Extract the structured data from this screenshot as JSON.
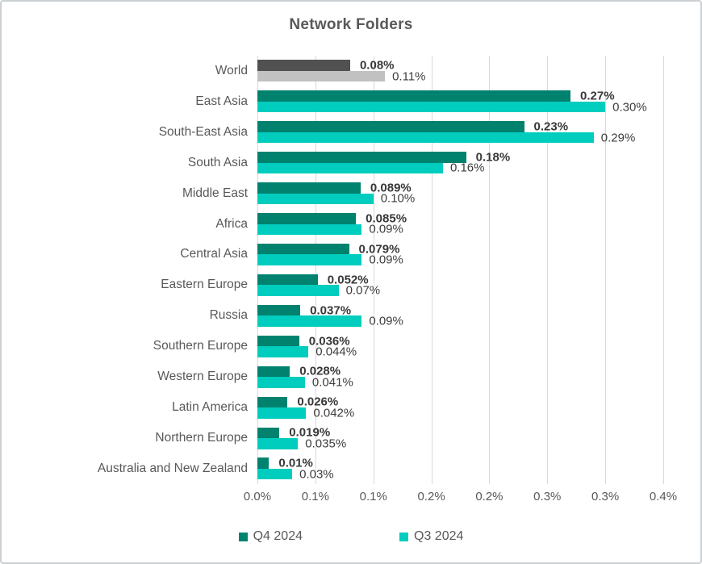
{
  "frame": {
    "background": "#ffffff",
    "border_color": "#cbd0d3"
  },
  "colors": {
    "q4_bar": "#00826F",
    "q3_bar": "#00CDBE",
    "world_q4_bar": "#515151",
    "world_q3_bar": "#C1C1C1",
    "gridline": "#d9d9d9",
    "text_gray": "#595959",
    "value_label": "#3d3d3d"
  },
  "chart_data": {
    "type": "bar",
    "orientation": "horizontal",
    "title": "Network Folders",
    "categories": [
      "World",
      "East Asia",
      "South-East Asia",
      "South Asia",
      "Middle East",
      "Africa",
      "Central Asia",
      "Eastern Europe",
      "Russia",
      "Southern Europe",
      "Western Europe",
      "Latin America",
      "Northern Europe",
      "Australia and New Zealand"
    ],
    "series": [
      {
        "name": "Q4 2024",
        "color": "#00826F",
        "world_bar_color": "#515151",
        "values": [
          0.08,
          0.27,
          0.23,
          0.18,
          0.089,
          0.085,
          0.079,
          0.052,
          0.037,
          0.036,
          0.028,
          0.026,
          0.019,
          0.01
        ],
        "labels": [
          "0.08%",
          "0.27%",
          "0.23%",
          "0.18%",
          "0.089%",
          "0.085%",
          "0.079%",
          "0.052%",
          "0.037%",
          "0.036%",
          "0.028%",
          "0.026%",
          "0.019%",
          "0.01%"
        ]
      },
      {
        "name": "Q3 2024",
        "color": "#00CDBE",
        "world_bar_color": "#C1C1C1",
        "values": [
          0.11,
          0.3,
          0.29,
          0.16,
          0.1,
          0.09,
          0.09,
          0.07,
          0.09,
          0.044,
          0.041,
          0.042,
          0.035,
          0.03
        ],
        "labels": [
          "0.11%",
          "0.30%",
          "0.29%",
          "0.16%",
          "0.10%",
          "0.09%",
          "0.09%",
          "0.07%",
          "0.09%",
          "0.044%",
          "0.041%",
          "0.042%",
          "0.035%",
          "0.03%"
        ]
      }
    ],
    "xlim": [
      0,
      0.35
    ],
    "x_tick_values": [
      0,
      0.05,
      0.1,
      0.15,
      0.2,
      0.25,
      0.3,
      0.35
    ],
    "x_tick_labels": [
      "0.0%",
      "0.1%",
      "0.1%",
      "0.2%",
      "0.2%",
      "0.3%",
      "0.3%",
      "0.4%"
    ],
    "grid": true,
    "legend_position": "bottom"
  },
  "legend": {
    "items": [
      {
        "label": "Q4 2024",
        "color": "#00826F"
      },
      {
        "label": "Q3 2024",
        "color": "#00CDBE"
      }
    ]
  }
}
